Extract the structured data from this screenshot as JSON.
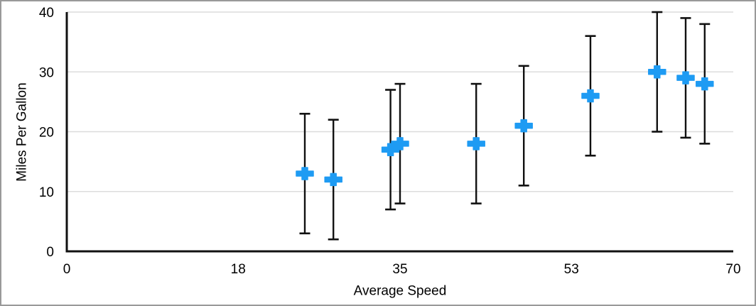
{
  "window": {
    "background": "#FFFFFF",
    "border_color": "#999999"
  },
  "chart_data": {
    "type": "scatter",
    "title": "",
    "xlabel": "Average Speed",
    "ylabel": "Miles Per Gallon",
    "xlim": [
      0,
      70
    ],
    "ylim": [
      0,
      40
    ],
    "x_ticks": [
      0,
      18,
      35,
      53,
      70
    ],
    "y_ticks": [
      0,
      10,
      20,
      30,
      40
    ],
    "grid": "horizontal-only",
    "legend": "none",
    "marker_style": "plus",
    "error_bars": {
      "type": "fixed",
      "value": 10,
      "direction": "both",
      "caps": true
    },
    "series": [
      {
        "name": "Miles Per Gallon",
        "points": [
          {
            "x": 25,
            "y": 13,
            "y_low": 3,
            "y_high": 23
          },
          {
            "x": 28,
            "y": 12,
            "y_low": 2,
            "y_high": 22
          },
          {
            "x": 34,
            "y": 17,
            "y_low": 7,
            "y_high": 27
          },
          {
            "x": 35,
            "y": 18,
            "y_low": 8,
            "y_high": 28
          },
          {
            "x": 43,
            "y": 18,
            "y_low": 8,
            "y_high": 28
          },
          {
            "x": 48,
            "y": 21,
            "y_low": 11,
            "y_high": 31
          },
          {
            "x": 55,
            "y": 26,
            "y_low": 16,
            "y_high": 36
          },
          {
            "x": 62,
            "y": 30,
            "y_low": 20,
            "y_high": 40
          },
          {
            "x": 65,
            "y": 29,
            "y_low": 19,
            "y_high": 39
          },
          {
            "x": 67,
            "y": 28,
            "y_low": 18,
            "y_high": 38
          }
        ]
      }
    ],
    "colors": {
      "marker": "#1E9BF3",
      "error_bar": "#111111",
      "gridline": "#DCDCDC",
      "axis": "#111111",
      "text": "#000000",
      "frame_border": "#999999",
      "background": "#FFFFFF"
    }
  }
}
